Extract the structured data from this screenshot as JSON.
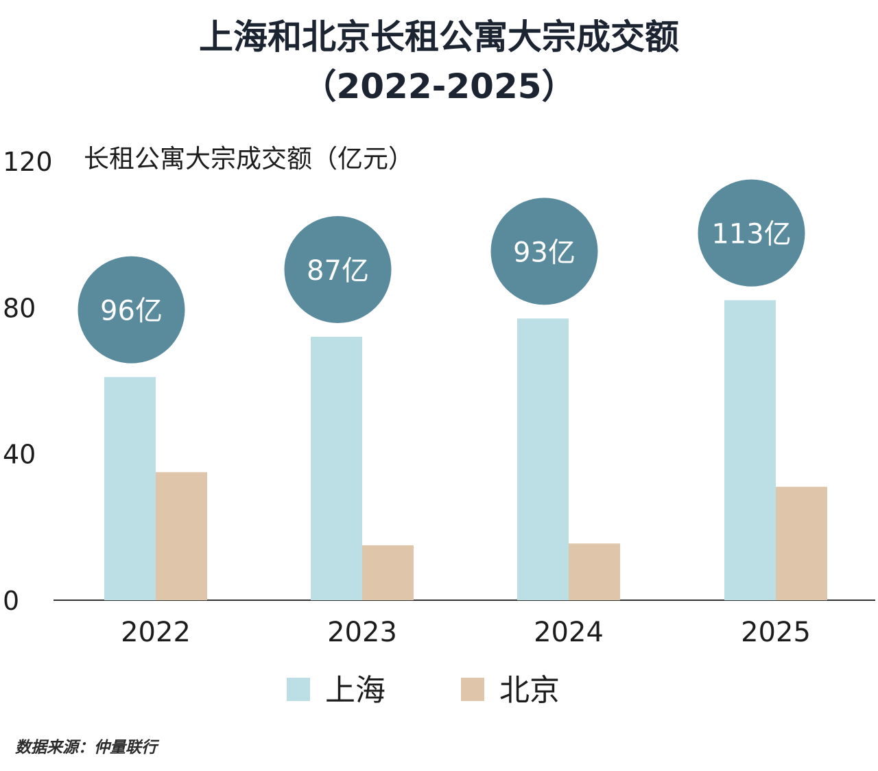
{
  "title_line1": "上海和北京长租公寓大宗成交额",
  "title_line2": "（2022-2025）",
  "source": "数据来源：仲量联行",
  "colors": {
    "shanghai": "#bcdfe6",
    "beijing": "#dfc5aa",
    "bubble": "#5a8b9d",
    "bubble_text": "#ffffff",
    "axis": "#333333"
  },
  "chart_data": {
    "type": "bar",
    "ylabel": "长租公寓大宗成交额（亿元）",
    "ylim": [
      0,
      120
    ],
    "yticks": [
      0,
      40,
      80,
      120
    ],
    "categories": [
      "2022",
      "2023",
      "2024",
      "2025"
    ],
    "series": [
      {
        "name": "上海",
        "values": [
          61,
          72,
          77,
          82
        ]
      },
      {
        "name": "北京",
        "values": [
          35,
          15,
          15.5,
          31
        ]
      }
    ],
    "totals_labels": [
      "96亿",
      "87亿",
      "93亿",
      "113亿"
    ],
    "legend_position": "bottom-center",
    "grid": false
  }
}
